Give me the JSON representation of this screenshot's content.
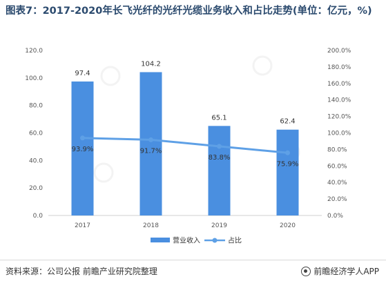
{
  "title": "图表7：2017-2020年长飞光纤的光纤光缆业务收入和占比走势(单位：亿元，%)",
  "footer": {
    "source": "资料来源：公司公报 前瞻产业研究院整理",
    "brand": "前瞻经济学人APP",
    "brand_icon": "qianzhan-logo-icon"
  },
  "colors": {
    "bar": "#4a8fe0",
    "line": "#5ea0e6",
    "title": "#2b4a6e"
  },
  "chart_data": {
    "type": "bar",
    "categories": [
      "2017",
      "2018",
      "2019",
      "2020"
    ],
    "series": [
      {
        "name": "营业收入",
        "type": "bar",
        "axis": "left",
        "values": [
          97.4,
          104.2,
          65.1,
          62.4
        ],
        "labels": [
          "97.4",
          "104.2",
          "65.1",
          "62.4"
        ]
      },
      {
        "name": "占比",
        "type": "line",
        "axis": "right",
        "values": [
          93.9,
          91.7,
          83.8,
          75.9
        ],
        "labels": [
          "93.9%",
          "91.7%",
          "83.8%",
          "75.9%"
        ]
      }
    ],
    "left_axis": {
      "min": 0,
      "max": 120,
      "step": 20,
      "tick_labels": [
        "0.0",
        "20.0",
        "40.0",
        "60.0",
        "80.0",
        "100.0",
        "120.0"
      ]
    },
    "right_axis": {
      "min": 0,
      "max": 200,
      "step": 20,
      "tick_labels": [
        "0.0%",
        "20.0%",
        "40.0%",
        "60.0%",
        "80.0%",
        "100.0%",
        "120.0%",
        "140.0%",
        "160.0%",
        "180.0%",
        "200.0%"
      ]
    },
    "legend_position": "bottom",
    "grid": false
  }
}
